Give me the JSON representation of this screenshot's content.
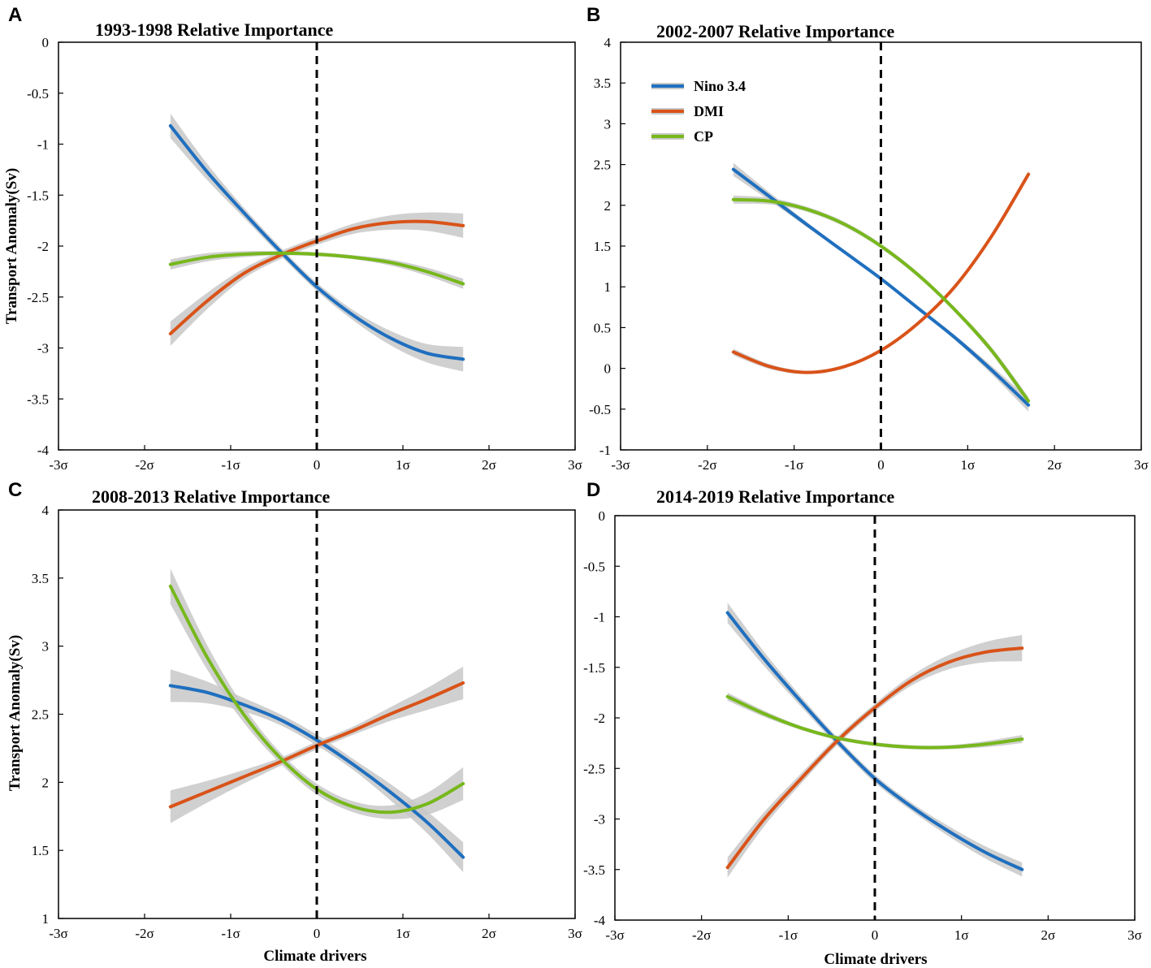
{
  "colors": {
    "nino": "#1f6fbf",
    "dmi": "#d95319",
    "cp": "#77b81c",
    "band": "#c8c8c8",
    "axis": "#000000"
  },
  "legend": [
    "Nino 3.4",
    "DMI",
    "CP"
  ],
  "chart_data": [
    {
      "letter": "A",
      "type": "line",
      "title": "1993-1998 Relative Importance",
      "ylabel": "Transport Anomaly(Sv)",
      "xlabel": "",
      "xlim": [
        -3,
        3
      ],
      "ylim": [
        -4,
        0
      ],
      "xticks": [
        -3,
        -2,
        -1,
        0,
        1,
        2,
        3
      ],
      "xtick_labels": [
        "-3σ",
        "-2σ",
        "-1σ",
        "0",
        "1σ",
        "2σ",
        "3σ"
      ],
      "yticks": [
        -4,
        -3.5,
        -3,
        -2.5,
        -2,
        -1.5,
        -1,
        -0.5,
        0
      ],
      "ytick_labels": [
        "-4",
        "-3.5",
        "-3",
        "-2.5",
        "-2",
        "-1.5",
        "-1",
        "-0.5",
        "0"
      ],
      "x": [
        -1.7,
        -1.275,
        -0.85,
        -0.425,
        0,
        0.425,
        0.85,
        1.275,
        1.7
      ],
      "series": [
        {
          "name": "Nino 3.4",
          "values": [
            -0.82,
            -1.27,
            -1.67,
            -2.05,
            -2.4,
            -2.68,
            -2.9,
            -3.05,
            -3.11
          ],
          "band": [
            0.12,
            0.08,
            0.05,
            0.04,
            0.04,
            0.05,
            0.07,
            0.09,
            0.12
          ]
        },
        {
          "name": "DMI",
          "values": [
            -2.86,
            -2.54,
            -2.27,
            -2.09,
            -1.95,
            -1.83,
            -1.77,
            -1.76,
            -1.8
          ],
          "band": [
            0.12,
            0.08,
            0.05,
            0.04,
            0.04,
            0.05,
            0.07,
            0.09,
            0.12
          ]
        },
        {
          "name": "CP",
          "values": [
            -2.18,
            -2.11,
            -2.08,
            -2.07,
            -2.08,
            -2.11,
            -2.16,
            -2.25,
            -2.37
          ],
          "band": [
            0.05,
            0.04,
            0.03,
            0.02,
            0.02,
            0.02,
            0.03,
            0.04,
            0.05
          ]
        }
      ]
    },
    {
      "letter": "B",
      "type": "line",
      "title": "2002-2007 Relative Importance",
      "ylabel": "",
      "xlabel": "",
      "xlim": [
        -3,
        3
      ],
      "ylim": [
        -1,
        4
      ],
      "xticks": [
        -3,
        -2,
        -1,
        0,
        1,
        2,
        3
      ],
      "xtick_labels": [
        "-3σ",
        "-2σ",
        "-1σ",
        "0",
        "1σ",
        "2σ",
        "3σ"
      ],
      "yticks": [
        -1,
        -0.5,
        0,
        0.5,
        1,
        1.5,
        2,
        2.5,
        3,
        3.5,
        4
      ],
      "ytick_labels": [
        "-1",
        "-0.5",
        "0",
        "0.5",
        "1",
        "1.5",
        "2",
        "2.5",
        "3",
        "3.5",
        "4"
      ],
      "x": [
        -1.7,
        -1.275,
        -0.85,
        -0.425,
        0,
        0.425,
        0.85,
        1.275,
        1.7
      ],
      "series": [
        {
          "name": "Nino 3.4",
          "values": [
            2.44,
            2.1,
            1.76,
            1.43,
            1.1,
            0.74,
            0.38,
            -0.02,
            -0.45
          ],
          "band": [
            0.08,
            0.05,
            0.03,
            0.02,
            0.02,
            0.02,
            0.03,
            0.05,
            0.08
          ]
        },
        {
          "name": "DMI",
          "values": [
            0.2,
            0.02,
            -0.05,
            0.02,
            0.22,
            0.55,
            1.0,
            1.62,
            2.38
          ],
          "band": [
            0.04,
            0.03,
            0.02,
            0.02,
            0.02,
            0.02,
            0.02,
            0.03,
            0.04
          ]
        },
        {
          "name": "CP",
          "values": [
            2.07,
            2.05,
            1.95,
            1.77,
            1.5,
            1.15,
            0.72,
            0.22,
            -0.4
          ],
          "band": [
            0.05,
            0.04,
            0.03,
            0.03,
            0.03,
            0.03,
            0.03,
            0.04,
            0.05
          ]
        }
      ]
    },
    {
      "letter": "C",
      "type": "line",
      "title": "2008-2013 Relative Importance",
      "ylabel": "Transport Anomaly(Sv)",
      "xlabel": "Climate drivers",
      "xlim": [
        -3,
        3
      ],
      "ylim": [
        1,
        4
      ],
      "xticks": [
        -3,
        -2,
        -1,
        0,
        1,
        2,
        3
      ],
      "xtick_labels": [
        "-3σ",
        "-2σ",
        "-1σ",
        "0",
        "1σ",
        "2σ",
        "3σ"
      ],
      "yticks": [
        1,
        1.5,
        2,
        2.5,
        3,
        3.5,
        4
      ],
      "ytick_labels": [
        "1",
        "1.5",
        "2",
        "2.5",
        "3",
        "3.5",
        "4"
      ],
      "x": [
        -1.7,
        -1.275,
        -0.85,
        -0.425,
        0,
        0.425,
        0.85,
        1.275,
        1.7
      ],
      "series": [
        {
          "name": "Nino 3.4",
          "values": [
            2.71,
            2.66,
            2.57,
            2.46,
            2.31,
            2.13,
            1.93,
            1.71,
            1.45
          ],
          "band": [
            0.12,
            0.08,
            0.05,
            0.04,
            0.04,
            0.04,
            0.06,
            0.08,
            0.11
          ]
        },
        {
          "name": "DMI",
          "values": [
            1.82,
            1.93,
            2.04,
            2.15,
            2.27,
            2.38,
            2.5,
            2.61,
            2.73
          ],
          "band": [
            0.12,
            0.08,
            0.05,
            0.03,
            0.03,
            0.03,
            0.05,
            0.08,
            0.12
          ]
        },
        {
          "name": "CP",
          "values": [
            3.44,
            2.92,
            2.5,
            2.18,
            1.95,
            1.82,
            1.78,
            1.84,
            1.99
          ],
          "band": [
            0.13,
            0.09,
            0.06,
            0.04,
            0.04,
            0.04,
            0.05,
            0.08,
            0.12
          ]
        }
      ]
    },
    {
      "letter": "D",
      "type": "line",
      "title": "2014-2019 Relative Importance",
      "ylabel": "",
      "xlabel": "Climate drivers",
      "xlim": [
        -3,
        3
      ],
      "ylim": [
        -4,
        0
      ],
      "xticks": [
        -3,
        -2,
        -1,
        0,
        1,
        2,
        3
      ],
      "xtick_labels": [
        "-3σ",
        "-2σ",
        "-1σ",
        "0",
        "1σ",
        "2σ",
        "3σ"
      ],
      "yticks": [
        -4,
        -3.5,
        -3,
        -2.5,
        -2,
        -1.5,
        -1,
        -0.5,
        0
      ],
      "ytick_labels": [
        "-4",
        "-3.5",
        "-3",
        "-2.5",
        "-2",
        "-1.5",
        "-1",
        "-0.5",
        "0"
      ],
      "x": [
        -1.7,
        -1.275,
        -0.85,
        -0.425,
        0,
        0.425,
        0.85,
        1.275,
        1.7
      ],
      "series": [
        {
          "name": "Nino 3.4",
          "values": [
            -0.96,
            -1.42,
            -1.84,
            -2.24,
            -2.6,
            -2.88,
            -3.12,
            -3.33,
            -3.5
          ],
          "band": [
            0.1,
            0.07,
            0.05,
            0.04,
            0.04,
            0.04,
            0.05,
            0.06,
            0.07
          ]
        },
        {
          "name": "DMI",
          "values": [
            -3.48,
            -3.0,
            -2.6,
            -2.22,
            -1.9,
            -1.63,
            -1.45,
            -1.35,
            -1.31
          ],
          "band": [
            0.1,
            0.07,
            0.05,
            0.04,
            0.04,
            0.05,
            0.07,
            0.1,
            0.13
          ]
        },
        {
          "name": "CP",
          "values": [
            -1.79,
            -1.96,
            -2.1,
            -2.2,
            -2.26,
            -2.29,
            -2.29,
            -2.26,
            -2.21
          ],
          "band": [
            0.04,
            0.03,
            0.02,
            0.02,
            0.02,
            0.02,
            0.02,
            0.03,
            0.04
          ]
        }
      ]
    }
  ]
}
